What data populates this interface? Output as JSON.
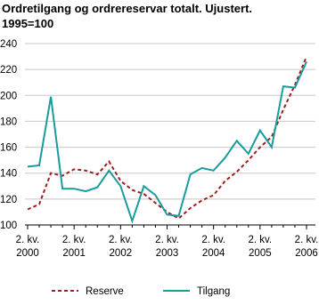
{
  "chart_data": {
    "type": "line",
    "title": "Ordretilgang og ordrereservar totalt. Ujustert.",
    "subtitle": "1995=100",
    "categories": [
      "2. kv. 2000",
      null,
      null,
      null,
      "2. kv. 2001",
      null,
      null,
      null,
      "2. kv. 2002",
      null,
      null,
      null,
      "2. kv. 2003",
      null,
      null,
      null,
      "2. kv. 2004",
      null,
      null,
      null,
      "2. kv. 2005",
      null,
      null,
      null,
      "2. kv. 2006"
    ],
    "series": [
      {
        "name": "Reserve",
        "color": "#a01e1e",
        "dash": true,
        "values": [
          112,
          116,
          140,
          138,
          143,
          142,
          139,
          149,
          134,
          127,
          124,
          117,
          110,
          105,
          113,
          119,
          123,
          134,
          141,
          150,
          160,
          168,
          189,
          208,
          230
        ]
      },
      {
        "name": "Tilgang",
        "color": "#1a9c9c",
        "dash": false,
        "values": [
          145,
          146,
          199,
          128,
          128,
          126,
          129,
          142,
          130,
          103,
          130,
          123,
          108,
          107,
          139,
          144,
          142,
          152,
          165,
          155,
          173,
          160,
          207,
          206,
          226
        ]
      }
    ],
    "ylim": [
      100,
      240
    ],
    "yticks": [
      100,
      120,
      140,
      160,
      180,
      200,
      220,
      240
    ],
    "grid": true,
    "legend": "bottom"
  }
}
